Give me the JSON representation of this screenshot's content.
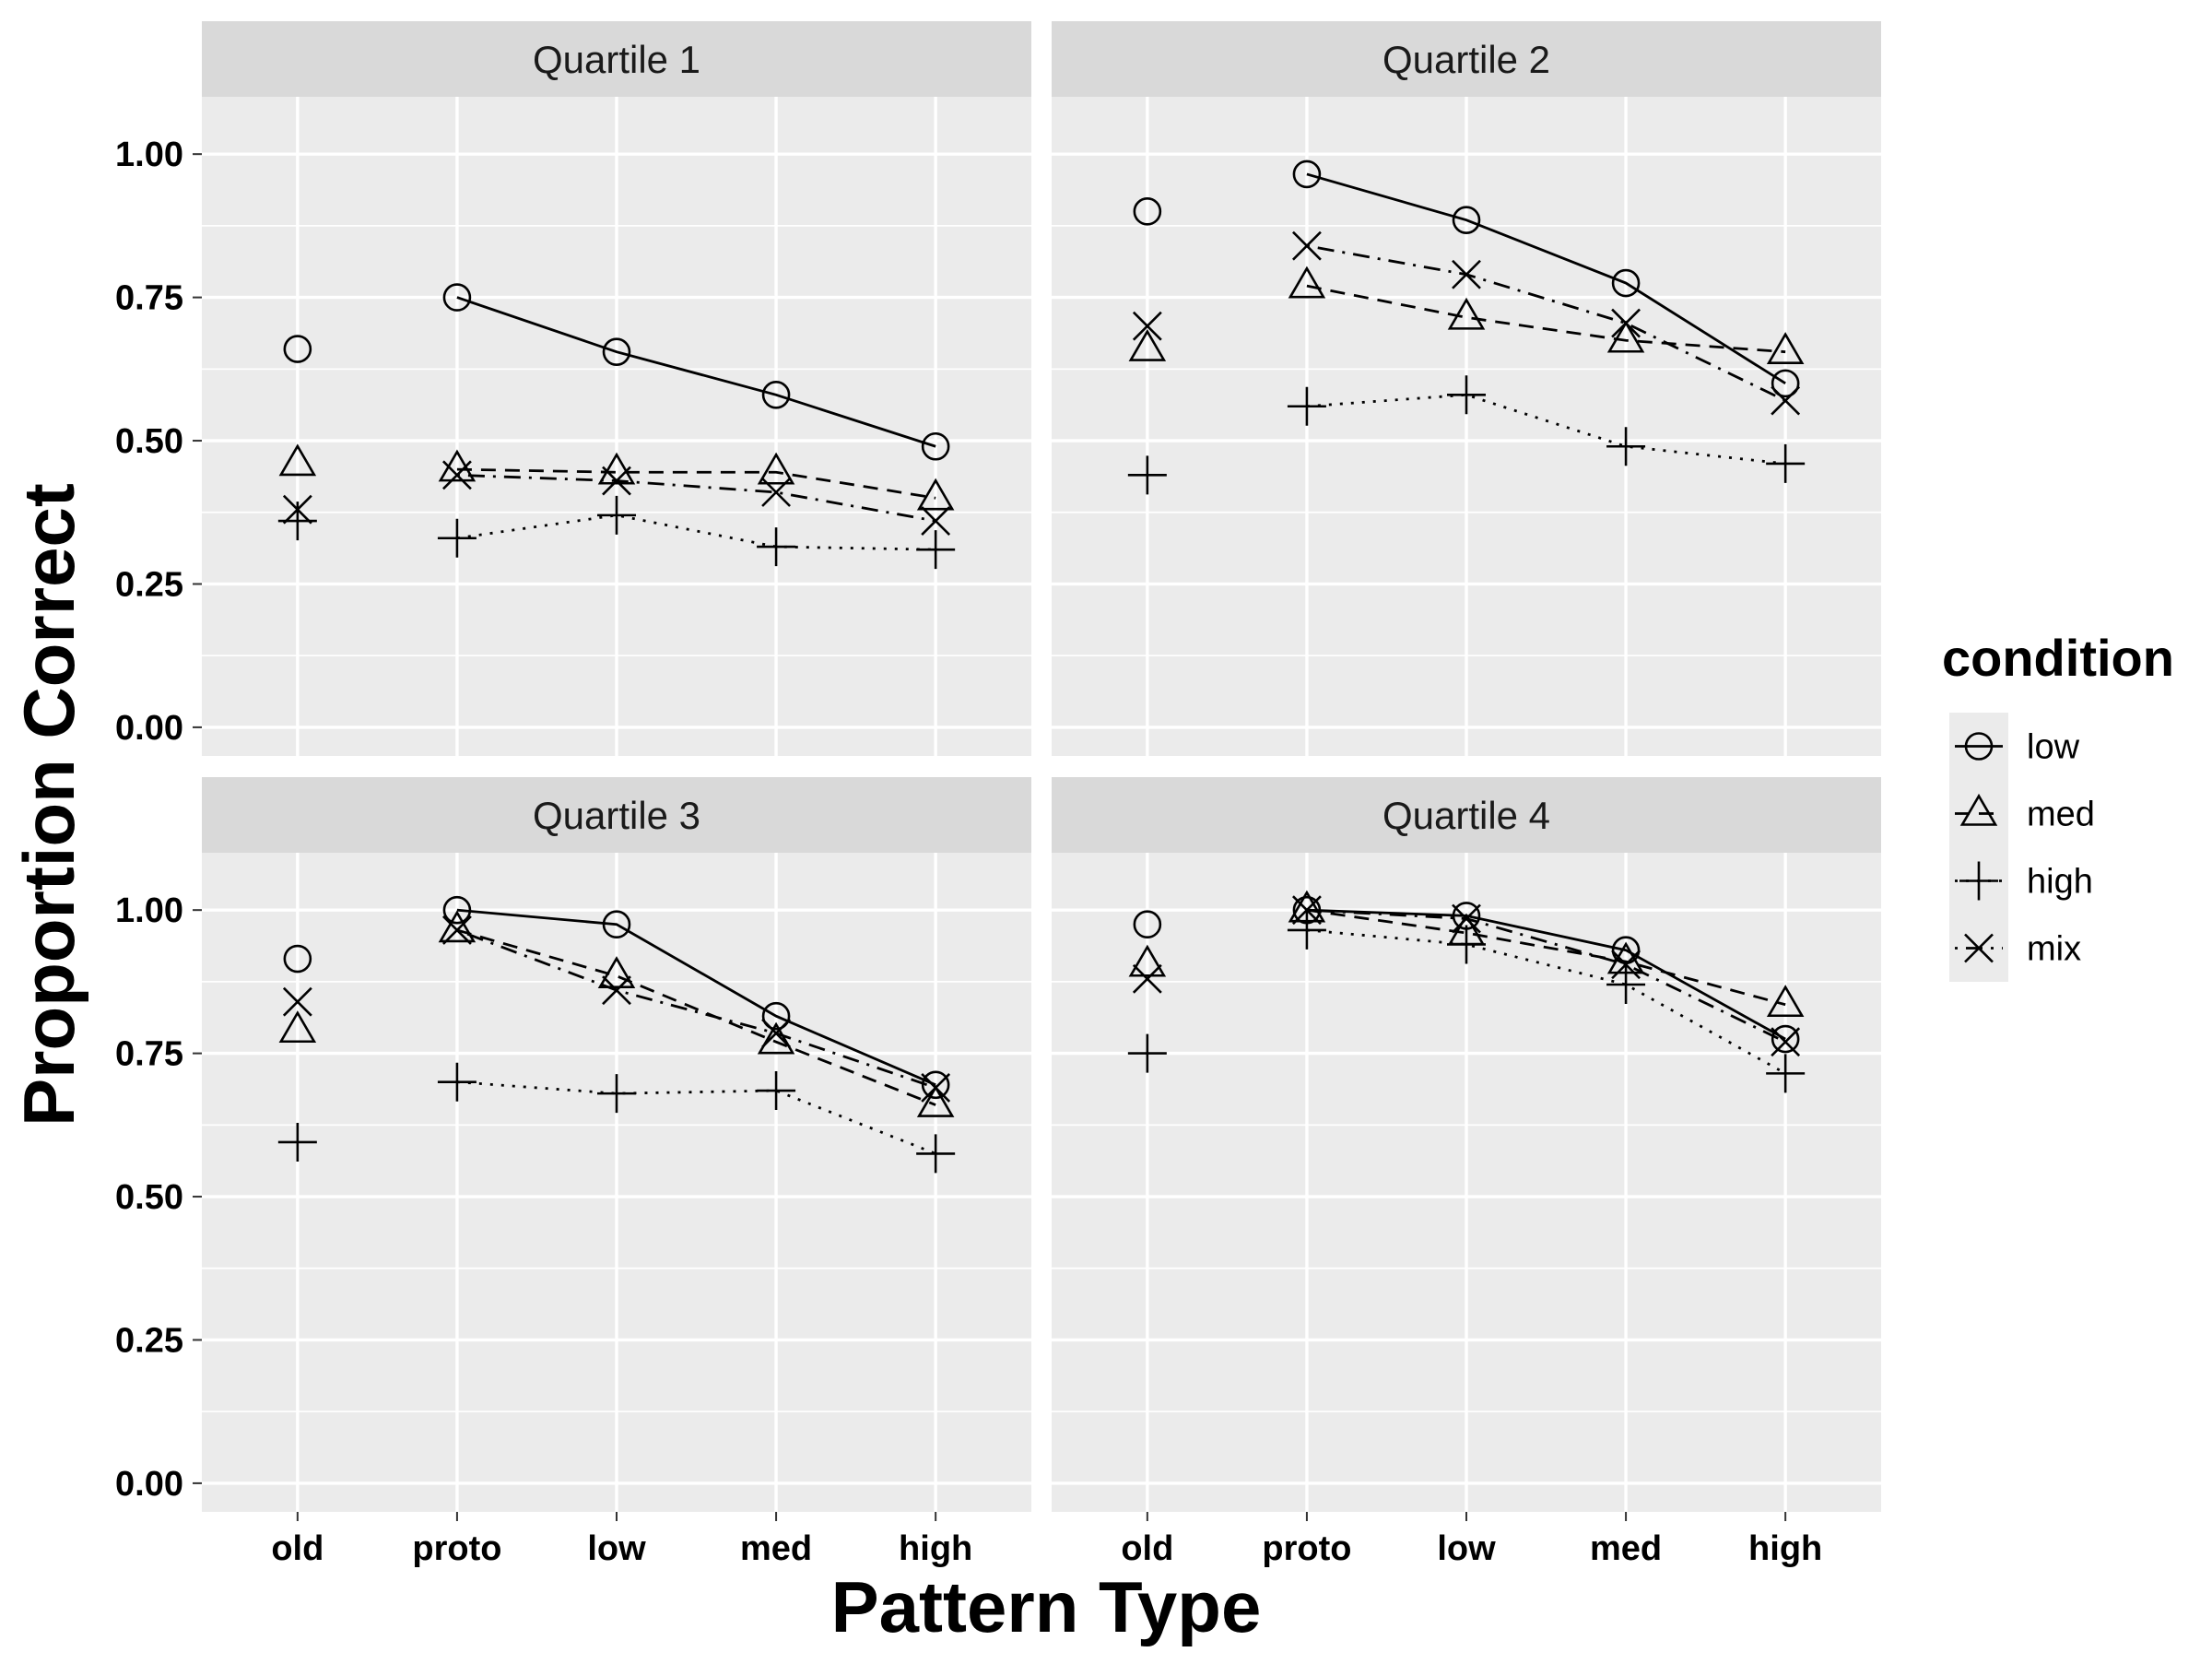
{
  "chart_data": {
    "type": "line",
    "facet_by": "quartile",
    "xlabel": "Pattern Type",
    "ylabel": "Proportion Correct",
    "categories": [
      "old",
      "proto",
      "low",
      "med",
      "high"
    ],
    "y_ticks": [
      "0.00",
      "0.25",
      "0.50",
      "0.75",
      "1.00"
    ],
    "ylim": [
      0,
      1.1
    ],
    "grid": true,
    "legend": {
      "title": "condition",
      "position": "right",
      "entries": [
        {
          "label": "low",
          "shape": "circle",
          "linetype": "solid"
        },
        {
          "label": "med",
          "shape": "triangle",
          "linetype": "dashed"
        },
        {
          "label": "high",
          "shape": "plus",
          "linetype": "dotted"
        },
        {
          "label": "mix",
          "shape": "cross",
          "linetype": "dotdash"
        }
      ]
    },
    "note": "The 'old' category is shown as points only; lines connect proto through high.",
    "panels": [
      {
        "title": "Quartile 1",
        "series": [
          {
            "name": "low",
            "values": [
              0.66,
              0.75,
              0.655,
              0.58,
              0.49
            ]
          },
          {
            "name": "med",
            "values": [
              0.46,
              0.45,
              0.445,
              0.445,
              0.4
            ]
          },
          {
            "name": "high",
            "values": [
              0.36,
              0.33,
              0.37,
              0.315,
              0.31
            ]
          },
          {
            "name": "mix",
            "values": [
              0.38,
              0.44,
              0.43,
              0.41,
              0.36
            ]
          }
        ]
      },
      {
        "title": "Quartile 2",
        "series": [
          {
            "name": "low",
            "values": [
              0.9,
              0.965,
              0.885,
              0.775,
              0.6
            ]
          },
          {
            "name": "med",
            "values": [
              0.66,
              0.77,
              0.715,
              0.675,
              0.655
            ]
          },
          {
            "name": "high",
            "values": [
              0.44,
              0.56,
              0.58,
              0.49,
              0.46
            ]
          },
          {
            "name": "mix",
            "values": [
              0.7,
              0.84,
              0.79,
              0.705,
              0.57
            ]
          }
        ]
      },
      {
        "title": "Quartile 3",
        "series": [
          {
            "name": "low",
            "values": [
              0.915,
              1.0,
              0.975,
              0.815,
              0.695
            ]
          },
          {
            "name": "med",
            "values": [
              0.79,
              0.965,
              0.885,
              0.77,
              0.66
            ]
          },
          {
            "name": "high",
            "values": [
              0.595,
              0.7,
              0.68,
              0.685,
              0.575
            ]
          },
          {
            "name": "mix",
            "values": [
              0.84,
              0.965,
              0.86,
              0.785,
              0.69
            ]
          }
        ]
      },
      {
        "title": "Quartile 4",
        "series": [
          {
            "name": "low",
            "values": [
              0.975,
              1.0,
              0.99,
              0.93,
              0.775
            ]
          },
          {
            "name": "med",
            "values": [
              0.905,
              1.0,
              0.96,
              0.91,
              0.835
            ]
          },
          {
            "name": "high",
            "values": [
              0.75,
              0.965,
              0.94,
              0.87,
              0.715
            ]
          },
          {
            "name": "mix",
            "values": [
              0.88,
              1.0,
              0.985,
              0.905,
              0.77
            ]
          }
        ]
      }
    ]
  }
}
